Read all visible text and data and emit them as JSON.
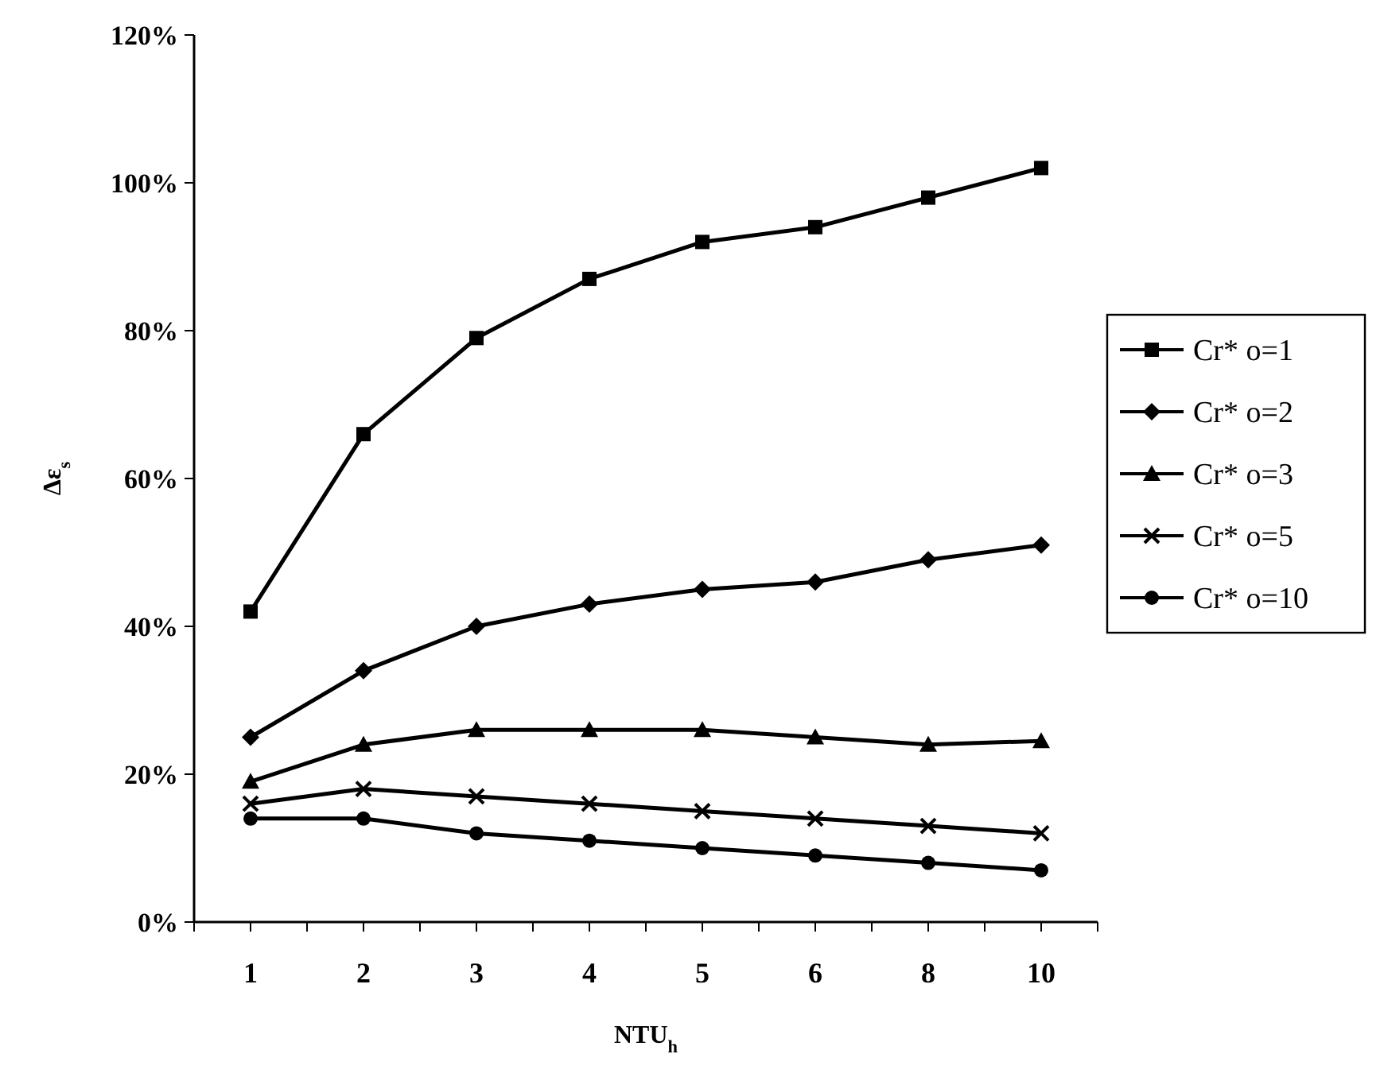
{
  "chart_data": {
    "type": "line",
    "xlabel": "NTU$_{h}$",
    "ylabel": "Δε$_{s}$",
    "categories": [
      "1",
      "2",
      "3",
      "4",
      "5",
      "6",
      "8",
      "10"
    ],
    "ylim": [
      0,
      120
    ],
    "yticks": [
      {
        "value": 0,
        "label": "0%"
      },
      {
        "value": 20,
        "label": "20%"
      },
      {
        "value": 40,
        "label": "40%"
      },
      {
        "value": 60,
        "label": "60%"
      },
      {
        "value": 80,
        "label": "80%"
      },
      {
        "value": 100,
        "label": "100%"
      },
      {
        "value": 120,
        "label": "120%"
      }
    ],
    "grid": false,
    "legend": "right",
    "line_style": "solid",
    "series": [
      {
        "name": "Cr* o=1",
        "color": "#000000",
        "marker": "square",
        "values": [
          42,
          66,
          79,
          87,
          92,
          94,
          98,
          102
        ]
      },
      {
        "name": "Cr* o=2",
        "color": "#000000",
        "marker": "diamond",
        "values": [
          25,
          34,
          40,
          43,
          45,
          46,
          49,
          51
        ]
      },
      {
        "name": "Cr* o=3",
        "color": "#000000",
        "marker": "triangle",
        "values": [
          19,
          24,
          26,
          26,
          26,
          25,
          24,
          24.5
        ]
      },
      {
        "name": "Cr* o=5",
        "color": "#000000",
        "marker": "cross",
        "values": [
          16,
          18,
          17,
          16,
          15,
          14,
          13,
          12
        ]
      },
      {
        "name": "Cr* o=10",
        "color": "#000000",
        "marker": "circle",
        "values": [
          14,
          14,
          12,
          11,
          10,
          9,
          8,
          7
        ]
      }
    ]
  }
}
